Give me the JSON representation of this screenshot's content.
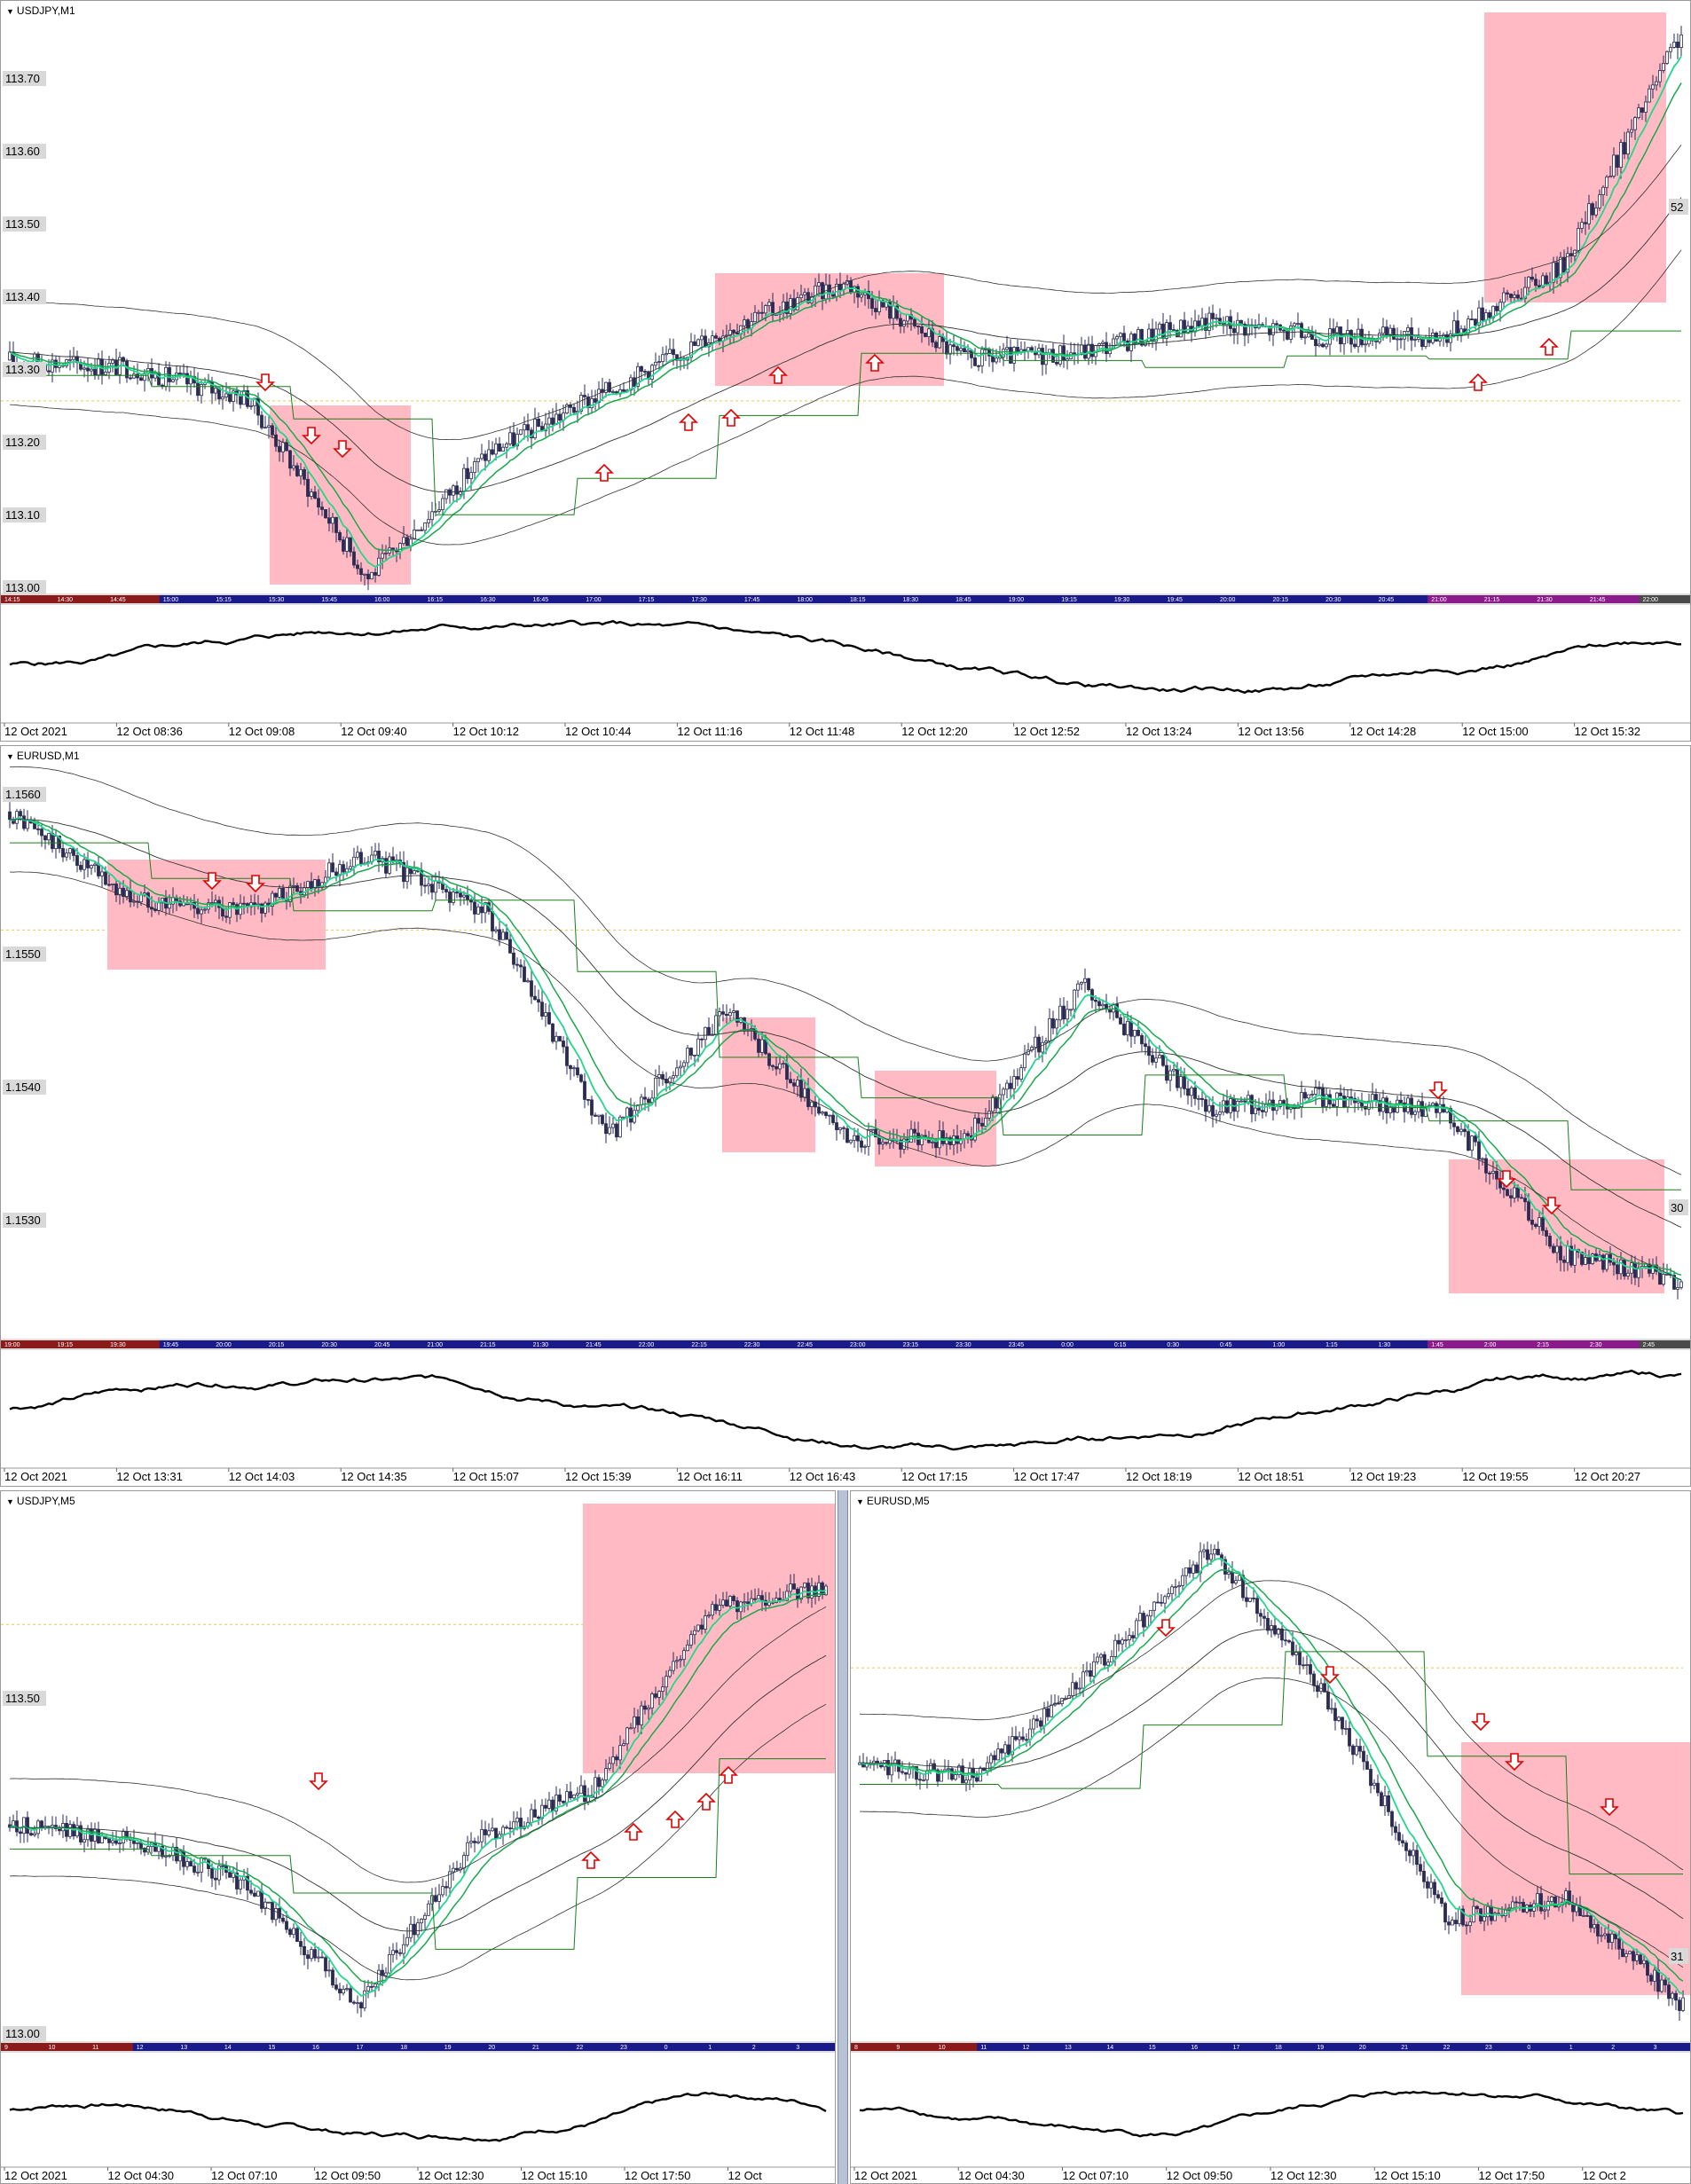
{
  "panels": [
    {
      "id": "usdjpy-m1",
      "title": "USDJPY,M1",
      "y_ticks": [
        "113.70",
        "113.60",
        "113.50",
        "113.40",
        "113.30",
        "113.20",
        "113.10",
        "113.00"
      ],
      "right_label": "52",
      "session_labels": [
        "14:15",
        "14:30",
        "14:45",
        "15:00",
        "15:15",
        "15:30",
        "15:45",
        "16:00",
        "16:15",
        "16:30",
        "16:45",
        "17:00",
        "17:15",
        "17:30",
        "17:45",
        "18:00",
        "18:15",
        "18:30",
        "18:45",
        "19:00",
        "19:15",
        "19:30",
        "19:45",
        "20:00",
        "20:15",
        "20:30",
        "20:45",
        "21:00",
        "21:15",
        "21:30",
        "21:45",
        "22:00"
      ],
      "time_labels": [
        "12 Oct 2021",
        "12 Oct 08:36",
        "12 Oct 09:08",
        "12 Oct 09:40",
        "12 Oct 10:12",
        "12 Oct 10:44",
        "12 Oct 11:16",
        "12 Oct 11:48",
        "12 Oct 12:20",
        "12 Oct 12:52",
        "12 Oct 13:24",
        "12 Oct 13:56",
        "12 Oct 14:28",
        "12 Oct 15:00",
        "12 Oct 15:32"
      ]
    },
    {
      "id": "eurusd-m1",
      "title": "EURUSD,M1",
      "y_ticks": [
        "1.1560",
        "1.1550",
        "1.1540",
        "1.1530"
      ],
      "right_label": "30",
      "session_labels": [
        "19:00",
        "19:15",
        "19:30",
        "19:45",
        "20:00",
        "20:15",
        "20:30",
        "20:45",
        "21:00",
        "21:15",
        "21:30",
        "21:45",
        "22:00",
        "22:15",
        "22:30",
        "22:45",
        "23:00",
        "23:15",
        "23:30",
        "23:45",
        "0:00",
        "0:15",
        "0:30",
        "0:45",
        "1:00",
        "1:15",
        "1:30",
        "1:45",
        "2:00",
        "2:15",
        "2:30",
        "2:45"
      ],
      "time_labels": [
        "12 Oct 2021",
        "12 Oct 13:31",
        "12 Oct 14:03",
        "12 Oct 14:35",
        "12 Oct 15:07",
        "12 Oct 15:39",
        "12 Oct 16:11",
        "12 Oct 16:43",
        "12 Oct 17:15",
        "12 Oct 17:47",
        "12 Oct 18:19",
        "12 Oct 18:51",
        "12 Oct 19:23",
        "12 Oct 19:55",
        "12 Oct 20:27"
      ]
    },
    {
      "id": "usdjpy-m5",
      "title": "USDJPY,M5",
      "y_ticks": [
        "113.50",
        "113.00"
      ],
      "right_label": "",
      "session_labels": [
        "9",
        "10",
        "11",
        "12",
        "13",
        "14",
        "15",
        "16",
        "17",
        "18",
        "19",
        "20",
        "21",
        "22",
        "23",
        "0",
        "1",
        "2",
        "3"
      ],
      "time_labels": [
        "12 Oct 2021",
        "12 Oct 04:30",
        "12 Oct 07:10",
        "12 Oct 09:50",
        "12 Oct 12:30",
        "12 Oct 15:10",
        "12 Oct 17:50",
        "12 Oct"
      ]
    },
    {
      "id": "eurusd-m5",
      "title": "EURUSD,M5",
      "y_ticks": [],
      "right_label": "31",
      "session_labels": [
        "8",
        "9",
        "10",
        "11",
        "12",
        "13",
        "14",
        "15",
        "16",
        "17",
        "18",
        "19",
        "20",
        "21",
        "22",
        "23",
        "0",
        "1",
        "2",
        "3"
      ],
      "time_labels": [
        "12 Oct 2021",
        "12 Oct 04:30",
        "12 Oct 07:10",
        "12 Oct 09:50",
        "12 Oct 12:30",
        "12 Oct 15:10",
        "12 Oct 17:50",
        "12 Oct 2"
      ]
    }
  ],
  "colors": {
    "candle": "#2a2a55",
    "ema_fast": "#22d88a",
    "ema_slow": "#1aa84c",
    "envelope": "#333333",
    "step_line": "#1a7f1a",
    "box_fill": "#ffb6c1",
    "arrow": "#e00000",
    "level_line": "#e8c860",
    "axis_label_bg": "#d9d9d9"
  },
  "chart_data": [
    {
      "type": "line",
      "title": "USDJPY,M1",
      "ylim": [
        113.0,
        113.75
      ],
      "x": [
        "12 Oct 2021",
        "12 Oct 08:36",
        "12 Oct 09:08",
        "12 Oct 09:40",
        "12 Oct 10:12",
        "12 Oct 10:44",
        "12 Oct 11:16",
        "12 Oct 11:48",
        "12 Oct 12:20",
        "12 Oct 12:52",
        "12 Oct 13:24",
        "12 Oct 13:56",
        "12 Oct 14:28",
        "12 Oct 15:00",
        "12 Oct 15:32"
      ],
      "series": [
        {
          "values": [
            113.3,
            113.29,
            113.25,
            113.02,
            113.18,
            113.26,
            113.34,
            113.4,
            113.3,
            113.31,
            113.35,
            113.33,
            113.33,
            113.42,
            113.72
          ]
        }
      ]
    },
    {
      "type": "line",
      "title": "EURUSD,M1",
      "ylim": [
        1.1522,
        1.1563
      ],
      "x": [
        "12 Oct 2021",
        "12 Oct 13:31",
        "12 Oct 14:03",
        "12 Oct 14:35",
        "12 Oct 15:07",
        "12 Oct 15:39",
        "12 Oct 16:11",
        "12 Oct 16:43",
        "12 Oct 17:15",
        "12 Oct 17:47",
        "12 Oct 18:19",
        "12 Oct 18:51",
        "12 Oct 19:23",
        "12 Oct 19:55",
        "12 Oct 20:27"
      ],
      "series": [
        {
          "values": [
            1.1559,
            1.1553,
            1.1552,
            1.1556,
            1.1552,
            1.1536,
            1.1545,
            1.1536,
            1.1536,
            1.1547,
            1.1538,
            1.1539,
            1.1538,
            1.1528,
            1.1526
          ]
        }
      ]
    },
    {
      "type": "line",
      "title": "USDJPY,M5",
      "ylim": [
        113.0,
        113.75
      ],
      "x": [
        "12 Oct 2021",
        "12 Oct 04:30",
        "12 Oct 07:10",
        "12 Oct 09:50",
        "12 Oct 12:30",
        "12 Oct 15:10",
        "12 Oct 17:50",
        "12 Oct"
      ],
      "series": [
        {
          "values": [
            113.3,
            113.28,
            113.22,
            113.05,
            113.28,
            113.35,
            113.6,
            113.63
          ]
        }
      ]
    },
    {
      "type": "line",
      "title": "EURUSD,M5",
      "ylim": [
        1.1525,
        1.157
      ],
      "x": [
        "12 Oct 2021",
        "12 Oct 04:30",
        "12 Oct 07:10",
        "12 Oct 09:50",
        "12 Oct 12:30",
        "12 Oct 15:10",
        "12 Oct 17:50",
        "12 Oct 2"
      ],
      "series": [
        {
          "values": [
            1.1548,
            1.1547,
            1.1556,
            1.1566,
            1.1553,
            1.1535,
            1.1537,
            1.1528
          ]
        }
      ]
    }
  ]
}
